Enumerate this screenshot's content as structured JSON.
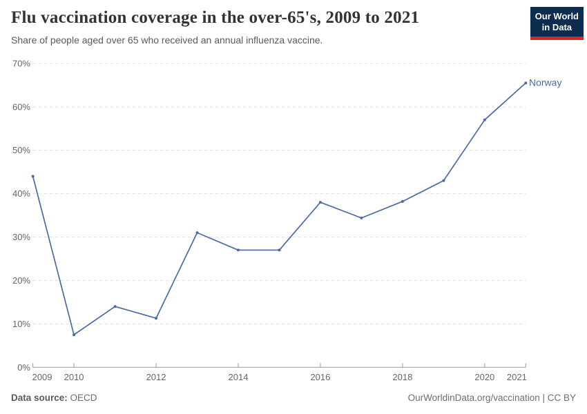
{
  "header": {
    "title": "Flu vaccination coverage in the over-65's, 2009 to 2021",
    "subtitle": "Share of people aged over 65 who received an annual influenza vaccine.",
    "logo": {
      "line1": "Our World",
      "line2": "in Data"
    }
  },
  "chart_data": {
    "type": "line",
    "title": "Flu vaccination coverage in the over-65's, 2009 to 2021",
    "subtitle": "Share of people aged over 65 who received an annual influenza vaccine.",
    "series": [
      {
        "name": "Norway",
        "x": [
          2009,
          2010,
          2011,
          2012,
          2013,
          2014,
          2015,
          2016,
          2017,
          2018,
          2019,
          2020,
          2021
        ],
        "values": [
          44,
          7.5,
          14,
          11.3,
          31,
          27,
          27,
          38,
          34.4,
          38.2,
          43,
          57,
          65.5
        ]
      }
    ],
    "xlabel": "",
    "ylabel": "",
    "ylim": [
      0,
      70
    ],
    "yticks": [
      0,
      10,
      20,
      30,
      40,
      50,
      60,
      70
    ],
    "ytick_suffix": "%",
    "xticks": [
      2009,
      2010,
      2012,
      2014,
      2016,
      2018,
      2020,
      2021
    ],
    "grid": "horizontal dashed",
    "legend": "entity label at line end",
    "line_color": "#4b69a5",
    "grid_color": "#dddddd",
    "axis_color": "#999999"
  },
  "footer": {
    "source_label": "Data source:",
    "source_value": "OECD",
    "credit": "OurWorldinData.org/vaccination | CC BY"
  }
}
